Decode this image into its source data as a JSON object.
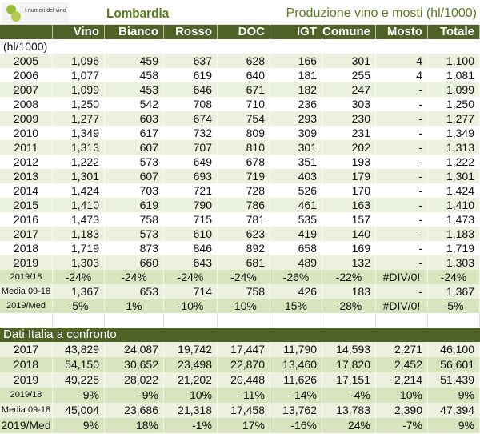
{
  "header": {
    "logo_text": "I numeri del vino",
    "title": "Lombardia",
    "subtitle": "Produzione vino e mosti (hl/1000)"
  },
  "columns": [
    "",
    "Vino",
    "Bianco",
    "Rosso",
    "DOC",
    "IGT",
    "Comune",
    "Mosto",
    "Totale"
  ],
  "unit": "(hl/1000)",
  "rows": [
    [
      "2005",
      "1,096",
      "459",
      "637",
      "628",
      "166",
      "301",
      "4",
      "1,100"
    ],
    [
      "2006",
      "1,077",
      "458",
      "619",
      "640",
      "181",
      "255",
      "4",
      "1,081"
    ],
    [
      "2007",
      "1,099",
      "453",
      "646",
      "671",
      "182",
      "247",
      "-",
      "1,099"
    ],
    [
      "2008",
      "1,250",
      "542",
      "708",
      "710",
      "236",
      "303",
      "-",
      "1,250"
    ],
    [
      "2009",
      "1,277",
      "603",
      "674",
      "754",
      "293",
      "230",
      "-",
      "1,277"
    ],
    [
      "2010",
      "1,349",
      "617",
      "732",
      "809",
      "309",
      "231",
      "-",
      "1,349"
    ],
    [
      "2011",
      "1,313",
      "607",
      "707",
      "810",
      "301",
      "202",
      "-",
      "1,313"
    ],
    [
      "2012",
      "1,222",
      "573",
      "649",
      "678",
      "351",
      "193",
      "-",
      "1,222"
    ],
    [
      "2013",
      "1,301",
      "607",
      "693",
      "719",
      "403",
      "179",
      "-",
      "1,301"
    ],
    [
      "2014",
      "1,424",
      "703",
      "721",
      "728",
      "526",
      "170",
      "-",
      "1,424"
    ],
    [
      "2015",
      "1,410",
      "619",
      "790",
      "786",
      "461",
      "163",
      "-",
      "1,410"
    ],
    [
      "2016",
      "1,473",
      "758",
      "715",
      "781",
      "535",
      "157",
      "-",
      "1,473"
    ],
    [
      "2017",
      "1,183",
      "573",
      "610",
      "623",
      "419",
      "140",
      "-",
      "1,183"
    ],
    [
      "2018",
      "1,719",
      "873",
      "846",
      "892",
      "658",
      "169",
      "-",
      "1,719"
    ],
    [
      "2019",
      "1,303",
      "660",
      "643",
      "681",
      "489",
      "132",
      "-",
      "1,303"
    ]
  ],
  "summary": [
    [
      "2019/18",
      "-24%",
      "-24%",
      "-24%",
      "-24%",
      "-26%",
      "-22%",
      "#DIV/0!",
      "-24%"
    ],
    [
      "Media 09-18",
      "1,367",
      "653",
      "714",
      "758",
      "426",
      "183",
      "-",
      "1,367"
    ],
    [
      "2019/Med",
      "-5%",
      "1%",
      "-10%",
      "-10%",
      "15%",
      "-28%",
      "#DIV/0!",
      "-5%"
    ]
  ],
  "italy": {
    "title": "Dati Italia a confronto",
    "rows": [
      [
        "2017",
        "43,829",
        "24,087",
        "19,742",
        "17,447",
        "11,790",
        "14,593",
        "2,271",
        "46,100"
      ],
      [
        "2018",
        "54,150",
        "30,652",
        "23,498",
        "22,870",
        "13,460",
        "17,820",
        "2,452",
        "56,601"
      ],
      [
        "2019",
        "49,225",
        "28,022",
        "21,202",
        "20,448",
        "11,626",
        "17,151",
        "2,214",
        "51,439"
      ],
      [
        "2019/18",
        "-9%",
        "-9%",
        "-10%",
        "-11%",
        "-14%",
        "-4%",
        "-10%",
        "-9%"
      ],
      [
        "Media 09-18",
        "45,004",
        "23,686",
        "21,318",
        "17,458",
        "13,762",
        "13,783",
        "2,390",
        "47,394"
      ],
      [
        "2019/Med",
        "9%",
        "18%",
        "-1%",
        "17%",
        "-16%",
        "24%",
        "-7%",
        "9%"
      ]
    ]
  }
}
